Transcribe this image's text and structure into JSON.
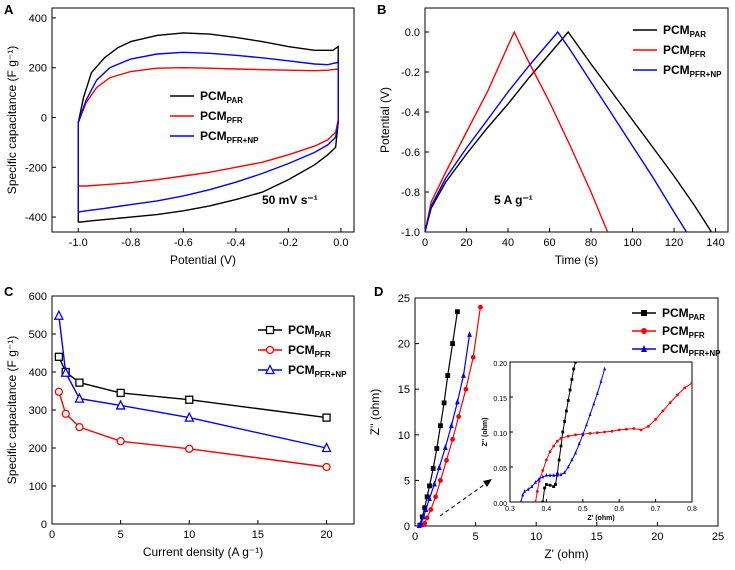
{
  "chart_data": [
    {
      "panel": "A",
      "type": "line",
      "title": "",
      "xlabel": "Potential (V)",
      "ylabel": "Specific capacitance (F g⁻¹)",
      "xlim": [
        -1.1,
        0.05
      ],
      "ylim": [
        -460,
        440
      ],
      "xticks": [
        -1.0,
        -0.8,
        -0.6,
        -0.4,
        -0.2,
        0.0
      ],
      "xtick_labels": [
        "-1.0",
        "-0.8",
        "-0.6",
        "-0.4",
        "-0.2",
        "0.0"
      ],
      "yticks": [
        -400,
        -200,
        0,
        200,
        400
      ],
      "ytick_labels": [
        "-400",
        "-200",
        "0",
        "200",
        "400"
      ],
      "annotation": "50 mV s⁻¹",
      "legend_position": "center-right",
      "series": [
        {
          "name": "PCM",
          "subscript": "PAR",
          "color": "#000000",
          "x": [
            -1.0,
            -0.98,
            -0.95,
            -0.9,
            -0.85,
            -0.8,
            -0.7,
            -0.6,
            -0.5,
            -0.4,
            -0.3,
            -0.2,
            -0.1,
            -0.03,
            -0.01,
            -0.01,
            -0.02,
            -0.05,
            -0.1,
            -0.2,
            -0.3,
            -0.4,
            -0.5,
            -0.6,
            -0.7,
            -0.8,
            -0.9,
            -0.95,
            -0.99,
            -1.0,
            -1.0
          ],
          "y": [
            -20,
            80,
            180,
            240,
            280,
            305,
            330,
            340,
            335,
            322,
            305,
            285,
            270,
            270,
            285,
            -20,
            -120,
            -150,
            -190,
            -250,
            -300,
            -330,
            -355,
            -375,
            -390,
            -400,
            -410,
            -415,
            -420,
            -420,
            -20
          ]
        },
        {
          "name": "PCM",
          "subscript": "PFR",
          "color": "#ff0000",
          "x": [
            -1.0,
            -0.97,
            -0.93,
            -0.88,
            -0.8,
            -0.7,
            -0.6,
            -0.5,
            -0.4,
            -0.3,
            -0.2,
            -0.1,
            -0.05,
            -0.01,
            -0.01,
            -0.02,
            -0.05,
            -0.1,
            -0.2,
            -0.3,
            -0.4,
            -0.5,
            -0.6,
            -0.7,
            -0.8,
            -0.9,
            -0.97,
            -1.0,
            -1.0
          ],
          "y": [
            -20,
            60,
            120,
            160,
            185,
            198,
            200,
            198,
            195,
            192,
            190,
            188,
            190,
            195,
            -10,
            -60,
            -90,
            -115,
            -150,
            -180,
            -200,
            -220,
            -235,
            -250,
            -262,
            -270,
            -275,
            -275,
            -20
          ]
        },
        {
          "name": "PCM",
          "subscript": "PFR+NP",
          "color": "#0000ff",
          "x": [
            -1.0,
            -0.97,
            -0.93,
            -0.88,
            -0.8,
            -0.7,
            -0.6,
            -0.5,
            -0.4,
            -0.3,
            -0.2,
            -0.1,
            -0.05,
            -0.01,
            -0.01,
            -0.02,
            -0.05,
            -0.1,
            -0.2,
            -0.3,
            -0.4,
            -0.5,
            -0.6,
            -0.7,
            -0.8,
            -0.9,
            -0.97,
            -1.0,
            -1.0
          ],
          "y": [
            -20,
            70,
            150,
            200,
            235,
            255,
            262,
            258,
            250,
            240,
            228,
            215,
            212,
            222,
            -20,
            -80,
            -110,
            -140,
            -185,
            -225,
            -260,
            -290,
            -315,
            -335,
            -350,
            -365,
            -375,
            -380,
            -20
          ]
        }
      ]
    },
    {
      "panel": "B",
      "type": "line",
      "title": "",
      "xlabel": "Time (s)",
      "ylabel": "Potential (V)",
      "xlim": [
        0,
        146
      ],
      "ylim": [
        -1.0,
        0.12
      ],
      "xticks": [
        0,
        20,
        40,
        60,
        80,
        100,
        120,
        140
      ],
      "xtick_labels": [
        "0",
        "20",
        "40",
        "60",
        "80",
        "100",
        "120",
        "140"
      ],
      "yticks": [
        -1.0,
        -0.8,
        -0.6,
        -0.4,
        -0.2,
        0.0
      ],
      "ytick_labels": [
        "-1.0",
        "-0.8",
        "-0.6",
        "-0.4",
        "-0.2",
        "0.0"
      ],
      "annotation": "5 A g⁻¹",
      "legend_position": "top-right",
      "series": [
        {
          "name": "PCM",
          "subscript": "PAR",
          "color": "#000000",
          "x": [
            0,
            3,
            10,
            20,
            30,
            40,
            50,
            60,
            69,
            80,
            90,
            100,
            110,
            120,
            130,
            138
          ],
          "y": [
            -1.0,
            -0.88,
            -0.75,
            -0.61,
            -0.48,
            -0.36,
            -0.23,
            -0.11,
            0.0,
            -0.16,
            -0.3,
            -0.44,
            -0.58,
            -0.72,
            -0.87,
            -1.0
          ]
        },
        {
          "name": "PCM",
          "subscript": "PFR",
          "color": "#ff0000",
          "x": [
            0,
            3,
            10,
            20,
            30,
            43,
            50,
            60,
            70,
            80,
            88
          ],
          "y": [
            -1.0,
            -0.85,
            -0.7,
            -0.5,
            -0.3,
            0.0,
            -0.15,
            -0.35,
            -0.57,
            -0.8,
            -1.0
          ]
        },
        {
          "name": "PCM",
          "subscript": "PFR+NP",
          "color": "#0000ff",
          "x": [
            0,
            3,
            10,
            20,
            30,
            40,
            50,
            64,
            70,
            80,
            90,
            100,
            110,
            120,
            126
          ],
          "y": [
            -1.0,
            -0.87,
            -0.73,
            -0.58,
            -0.44,
            -0.3,
            -0.17,
            0.0,
            -0.09,
            -0.25,
            -0.41,
            -0.57,
            -0.73,
            -0.9,
            -1.0
          ]
        }
      ]
    },
    {
      "panel": "C",
      "type": "line",
      "title": "",
      "xlabel": "Current density (A g⁻¹)",
      "ylabel": "Specific capacitance (F g⁻¹)",
      "xlim": [
        0,
        22
      ],
      "ylim": [
        0,
        600
      ],
      "xticks": [
        0,
        5,
        10,
        15,
        20
      ],
      "xtick_labels": [
        "0",
        "5",
        "10",
        "15",
        "20"
      ],
      "yticks": [
        0,
        100,
        200,
        300,
        400,
        500,
        600
      ],
      "ytick_labels": [
        "0",
        "100",
        "200",
        "300",
        "400",
        "500",
        "600"
      ],
      "legend_position": "top-right",
      "series": [
        {
          "name": "PCM",
          "subscript": "PAR",
          "color": "#000000",
          "marker": "square",
          "x": [
            0.5,
            1,
            2,
            5,
            10,
            20
          ],
          "y": [
            440,
            400,
            372,
            345,
            327,
            280
          ]
        },
        {
          "name": "PCM",
          "subscript": "PFR",
          "color": "#ff0000",
          "marker": "circle",
          "x": [
            0.5,
            1,
            2,
            5,
            10,
            20
          ],
          "y": [
            348,
            290,
            255,
            218,
            198,
            150
          ]
        },
        {
          "name": "PCM",
          "subscript": "PFR+NP",
          "color": "#0000ff",
          "marker": "triangle",
          "x": [
            0.5,
            1,
            2,
            5,
            10,
            20
          ],
          "y": [
            548,
            398,
            330,
            312,
            280,
            200
          ]
        }
      ]
    },
    {
      "panel": "D",
      "type": "scatter",
      "title": "",
      "xlabel": "Z' (ohm)",
      "ylabel": "Z'' (ohm)",
      "xlim": [
        0,
        25
      ],
      "ylim": [
        0,
        25
      ],
      "xticks": [
        0,
        5,
        10,
        15,
        20,
        25
      ],
      "xtick_labels": [
        "0",
        "5",
        "10",
        "15",
        "20",
        "25"
      ],
      "yticks": [
        0,
        5,
        10,
        15,
        20,
        25
      ],
      "ytick_labels": [
        "0",
        "5",
        "10",
        "15",
        "20",
        "25"
      ],
      "legend_position": "top-right",
      "series": [
        {
          "name": "PCM",
          "subscript": "PAR",
          "color": "#000000",
          "marker": "square",
          "x": [
            0.4,
            0.6,
            0.8,
            1.0,
            1.2,
            1.5,
            1.8,
            2.1,
            2.4,
            2.7,
            3.1,
            3.5
          ],
          "y": [
            0.1,
            1.0,
            2.0,
            3.2,
            4.4,
            6.3,
            8.5,
            11.0,
            13.5,
            16.5,
            20.0,
            23.5
          ]
        },
        {
          "name": "PCM",
          "subscript": "PFR",
          "color": "#ff0000",
          "marker": "circle",
          "x": [
            0.4,
            0.6,
            0.8,
            1.0,
            1.3,
            1.7,
            2.1,
            2.6,
            3.1,
            3.6,
            4.2,
            4.8,
            5.4
          ],
          "y": [
            0.05,
            0.1,
            0.3,
            0.9,
            1.8,
            3.2,
            5.0,
            7.2,
            9.5,
            12.0,
            15.0,
            18.5,
            24.0
          ]
        },
        {
          "name": "PCM",
          "subscript": "PFR+NP",
          "color": "#0000ff",
          "marker": "triangle",
          "x": [
            0.35,
            0.5,
            0.7,
            0.9,
            1.2,
            1.6,
            2.0,
            2.5,
            3.0,
            3.5,
            4.0,
            4.5
          ],
          "y": [
            0.05,
            0.3,
            1.0,
            1.8,
            3.0,
            4.6,
            6.4,
            8.6,
            11.0,
            13.6,
            16.5,
            21.0
          ]
        }
      ],
      "inset": {
        "xlabel": "Z' (ohm)",
        "ylabel": "Z'' (ohm)",
        "xlim": [
          0.3,
          0.8
        ],
        "ylim": [
          0.0,
          0.2
        ],
        "xticks": [
          0.3,
          0.4,
          0.5,
          0.6,
          0.7,
          0.8
        ],
        "xtick_labels": [
          "0.3",
          "0.4",
          "0.5",
          "0.6",
          "0.7",
          "0.8"
        ],
        "yticks": [
          0.0,
          0.05,
          0.1,
          0.15,
          0.2
        ],
        "ytick_labels": [
          "0.00",
          "0.05",
          "0.10",
          "0.15",
          "0.20"
        ],
        "series": [
          {
            "name": "PCM",
            "subscript": "PAR",
            "color": "#000000",
            "x": [
              0.39,
              0.395,
              0.4,
              0.41,
              0.42,
              0.425,
              0.43,
              0.435,
              0.44,
              0.445,
              0.45,
              0.455,
              0.46,
              0.465,
              0.47,
              0.475,
              0.48
            ],
            "y": [
              0.0,
              0.02,
              0.025,
              0.024,
              0.022,
              0.025,
              0.04,
              0.06,
              0.08,
              0.1,
              0.115,
              0.13,
              0.145,
              0.16,
              0.175,
              0.19,
              0.2
            ]
          },
          {
            "name": "PCM",
            "subscript": "PFR",
            "color": "#ff0000",
            "x": [
              0.37,
              0.375,
              0.38,
              0.39,
              0.4,
              0.41,
              0.42,
              0.43,
              0.44,
              0.46,
              0.48,
              0.5,
              0.52,
              0.54,
              0.56,
              0.58,
              0.6,
              0.62,
              0.64,
              0.66,
              0.68,
              0.7,
              0.72,
              0.74,
              0.76,
              0.78,
              0.8
            ],
            "y": [
              0.0,
              0.015,
              0.03,
              0.045,
              0.06,
              0.072,
              0.08,
              0.087,
              0.091,
              0.094,
              0.096,
              0.097,
              0.098,
              0.099,
              0.1,
              0.101,
              0.103,
              0.104,
              0.105,
              0.103,
              0.108,
              0.118,
              0.13,
              0.142,
              0.153,
              0.163,
              0.17
            ]
          },
          {
            "name": "PCM",
            "subscript": "PFR+NP",
            "color": "#0000ff",
            "x": [
              0.33,
              0.335,
              0.34,
              0.35,
              0.36,
              0.37,
              0.38,
              0.39,
              0.4,
              0.41,
              0.42,
              0.43,
              0.44,
              0.45,
              0.46,
              0.47,
              0.48,
              0.49,
              0.5,
              0.51,
              0.52,
              0.53,
              0.54,
              0.55,
              0.56
            ],
            "y": [
              0.0,
              0.01,
              0.015,
              0.018,
              0.022,
              0.028,
              0.033,
              0.036,
              0.038,
              0.038,
              0.038,
              0.038,
              0.039,
              0.042,
              0.05,
              0.06,
              0.07,
              0.083,
              0.096,
              0.11,
              0.125,
              0.14,
              0.155,
              0.172,
              0.19
            ]
          }
        ]
      }
    }
  ]
}
